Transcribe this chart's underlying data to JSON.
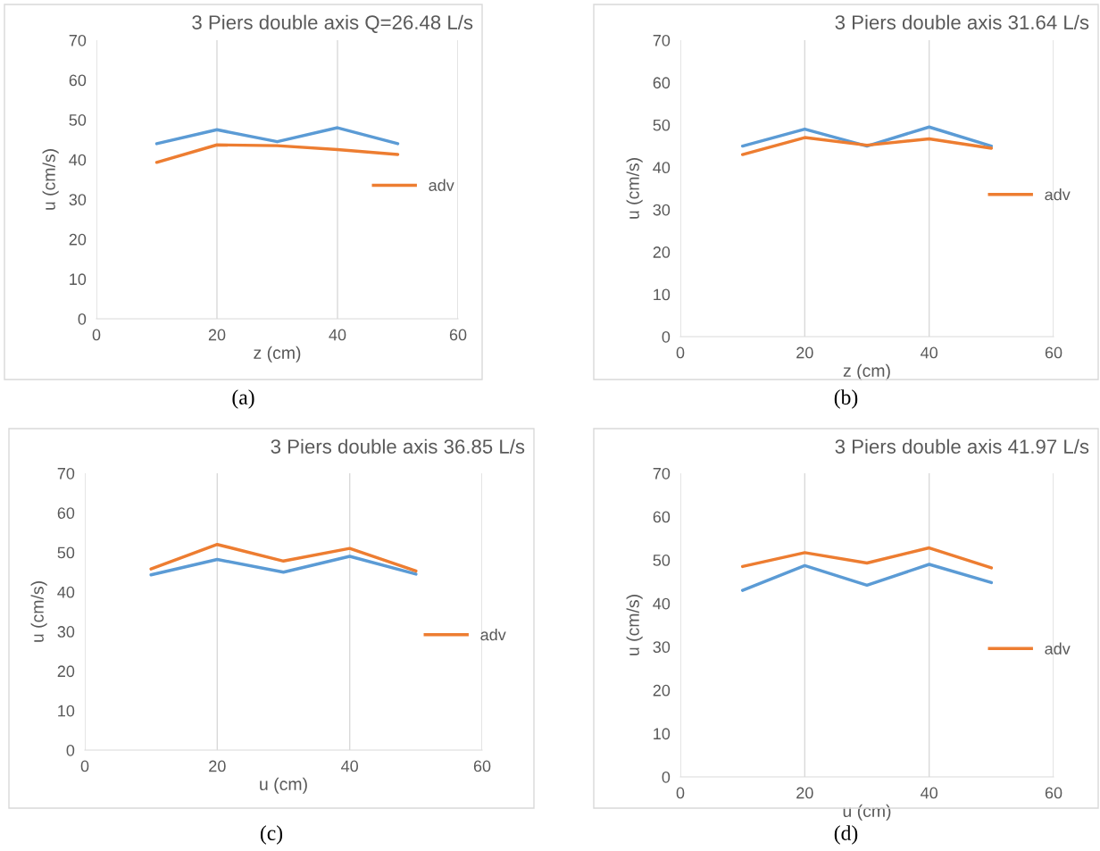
{
  "chart_data": [
    {
      "type": "line",
      "title": "3 Piers double axis Q=26.48 L/s",
      "xlabel": "z (cm)",
      "ylabel": "u (cm/s)",
      "annotations": [
        "(a)"
      ],
      "x": [
        10,
        20,
        30,
        40,
        50
      ],
      "xlim": [
        0,
        60
      ],
      "xticks": [
        0,
        20,
        40,
        60
      ],
      "ylim": [
        0,
        70
      ],
      "yticks": [
        0,
        10,
        20,
        30,
        40,
        50,
        60,
        70
      ],
      "grid": "x",
      "legend": "right",
      "marker": "none",
      "line_style": "solid",
      "series": [
        {
          "color": "#5b9bd5",
          "values": [
            44,
            47.5,
            44.5,
            48,
            44
          ]
        },
        {
          "name": "adv",
          "color": "#ed7d31",
          "values": [
            39.3,
            43.7,
            43.5,
            42.5,
            41.3
          ]
        }
      ]
    },
    {
      "type": "line",
      "title": "3 Piers double axis 31.64 L/s",
      "xlabel": "z (cm)",
      "ylabel": "u (cm/s)",
      "annotations": [
        "(b)"
      ],
      "x": [
        10,
        20,
        30,
        40,
        50
      ],
      "xlim": [
        0,
        60
      ],
      "xticks": [
        0,
        20,
        40,
        60
      ],
      "ylim": [
        0,
        70
      ],
      "yticks": [
        0,
        10,
        20,
        30,
        40,
        50,
        60,
        70
      ],
      "grid": "x",
      "legend": "right",
      "marker": "none",
      "line_style": "solid",
      "series": [
        {
          "color": "#5b9bd5",
          "values": [
            45,
            49,
            45,
            49.5,
            45
          ]
        },
        {
          "name": "adv",
          "color": "#ed7d31",
          "values": [
            43,
            47,
            45.2,
            46.7,
            44.5
          ]
        }
      ]
    },
    {
      "type": "line",
      "title": "3 Piers double axis 36.85 L/s",
      "xlabel": "u (cm)",
      "ylabel": "u (cm/s)",
      "annotations": [
        "(c)"
      ],
      "x": [
        10,
        20,
        30,
        40,
        50
      ],
      "xlim": [
        0,
        60
      ],
      "xticks": [
        0,
        20,
        40,
        60
      ],
      "ylim": [
        0,
        70
      ],
      "yticks": [
        0,
        10,
        20,
        30,
        40,
        50,
        60,
        70
      ],
      "grid": "x",
      "legend": "right",
      "marker": "none",
      "line_style": "solid",
      "series": [
        {
          "color": "#5b9bd5",
          "values": [
            44.3,
            48.2,
            45,
            49,
            44.5
          ]
        },
        {
          "name": "adv",
          "color": "#ed7d31",
          "values": [
            45.8,
            52,
            47.8,
            51,
            45.3
          ]
        }
      ]
    },
    {
      "type": "line",
      "title": "3 Piers double axis 41.97 L/s",
      "xlabel": "u (cm)",
      "ylabel": "u (cm/s)",
      "annotations": [
        "(d)"
      ],
      "x": [
        10,
        20,
        30,
        40,
        50
      ],
      "xlim": [
        0,
        60
      ],
      "xticks": [
        0,
        20,
        40,
        60
      ],
      "ylim": [
        0,
        70
      ],
      "yticks": [
        0,
        10,
        20,
        30,
        40,
        50,
        60,
        70
      ],
      "grid": "x",
      "legend": "right",
      "marker": "none",
      "line_style": "solid",
      "series": [
        {
          "color": "#5b9bd5",
          "values": [
            43,
            48.7,
            44.2,
            49,
            44.8
          ]
        },
        {
          "name": "adv",
          "color": "#ed7d31",
          "values": [
            48.5,
            51.7,
            49.3,
            52.8,
            48.2
          ]
        }
      ]
    }
  ]
}
